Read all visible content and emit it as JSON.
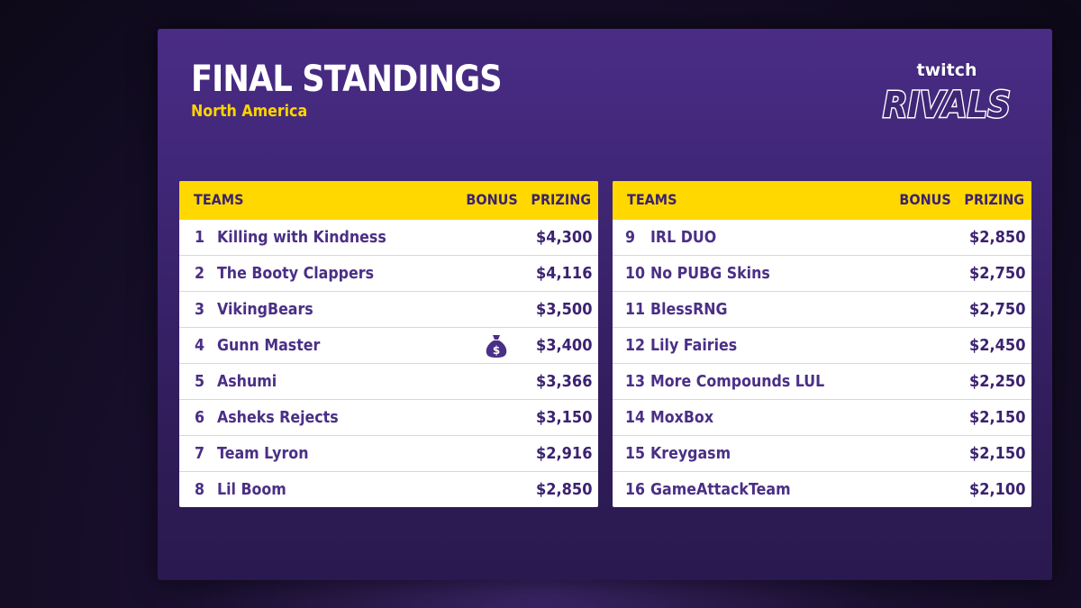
{
  "title": "FINAL STANDINGS",
  "subtitle": "North America",
  "logo": {
    "top": "twitch",
    "bottom": "RIVALS"
  },
  "headers": {
    "teams": "TEAMS",
    "bonus": "BONUS",
    "prizing": "PRIZING"
  },
  "colors": {
    "accent": "#ffd800",
    "purple": "#4a2f86",
    "panel": "#3f2675"
  },
  "left_rows": [
    {
      "rank": "1",
      "team": "Killing with Kindness",
      "prize": "$4,300"
    },
    {
      "rank": "2",
      "team": "The Booty Clappers",
      "prize": "$4,116"
    },
    {
      "rank": "3",
      "team": "VikingBears",
      "prize": "$3,500"
    },
    {
      "rank": "4",
      "team": "Gunn Master",
      "prize": "$3,400",
      "bonus_icon": "money-bag-icon"
    },
    {
      "rank": "5",
      "team": "Ashumi",
      "prize": "$3,366"
    },
    {
      "rank": "6",
      "team": "Asheks Rejects",
      "prize": "$3,150"
    },
    {
      "rank": "7",
      "team": "Team Lyron",
      "prize": "$2,916"
    },
    {
      "rank": "8",
      "team": "Lil Boom",
      "prize": "$2,850"
    }
  ],
  "right_rows": [
    {
      "rank": "9",
      "team": "IRL DUO",
      "prize": "$2,850"
    },
    {
      "rank": "10",
      "team": "No PUBG Skins",
      "prize": "$2,750"
    },
    {
      "rank": "11",
      "team": "BlessRNG",
      "prize": "$2,750"
    },
    {
      "rank": "12",
      "team": "Lily Fairies",
      "prize": "$2,450"
    },
    {
      "rank": "13",
      "team": "More Compounds LUL",
      "prize": "$2,250"
    },
    {
      "rank": "14",
      "team": "MoxBox",
      "prize": "$2,150"
    },
    {
      "rank": "15",
      "team": "Kreygasm",
      "prize": "$2,150"
    },
    {
      "rank": "16",
      "team": "GameAttackTeam",
      "prize": "$2,100"
    }
  ]
}
